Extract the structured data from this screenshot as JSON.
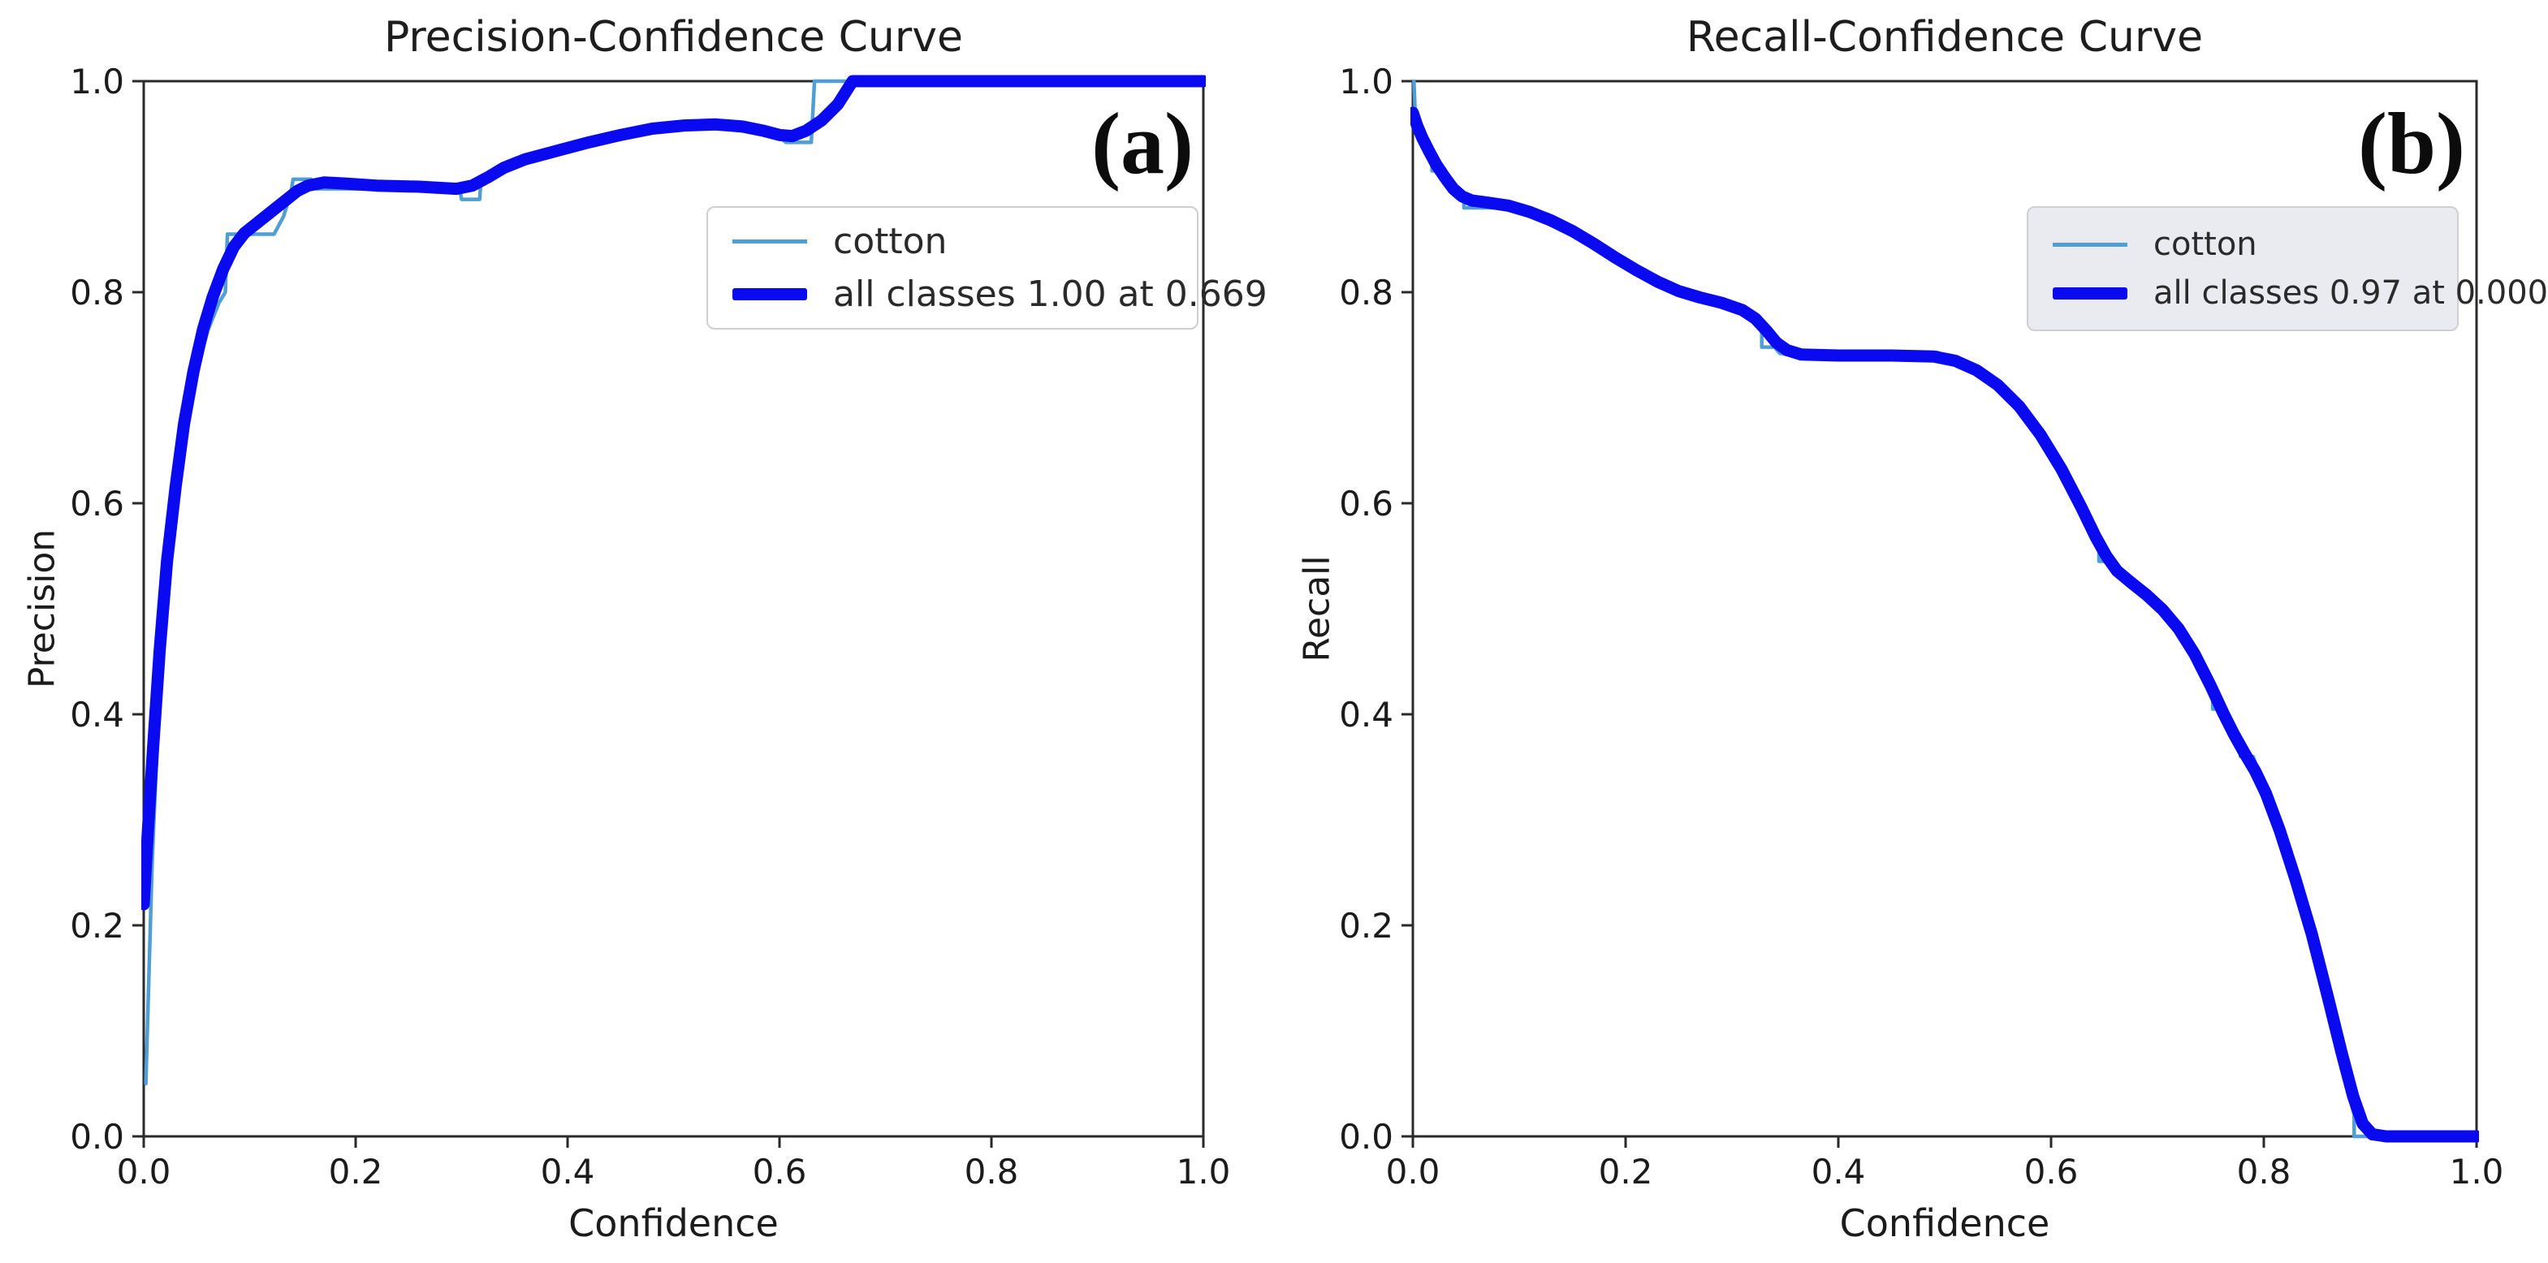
{
  "colors": {
    "class_line": "#4f9fd4",
    "all_classes_line": "#0a0af0",
    "axis": "#2a2a2a",
    "text": "#1b1b1b",
    "legend_border": "#cfcfcf",
    "legend_bg_left": "#ffffff",
    "legend_bg_right": "#ebebf0"
  },
  "chart_data": [
    {
      "type": "line",
      "title": "Precision-Confidence Curve",
      "xlabel": "Confidence",
      "ylabel": "Precision",
      "panel_label": "(a)",
      "xlim": [
        0.0,
        1.0
      ],
      "ylim": [
        0.0,
        1.0
      ],
      "grid": false,
      "legend_position": "upper right",
      "xticks": [
        "0.0",
        "0.2",
        "0.4",
        "0.6",
        "0.8",
        "1.0"
      ],
      "yticks": [
        "0.0",
        "0.2",
        "0.4",
        "0.6",
        "0.8",
        "1.0"
      ],
      "legend": [
        {
          "label": "cotton"
        },
        {
          "label": "all classes 1.00 at 0.669"
        }
      ],
      "series": [
        {
          "name": "cotton",
          "points": [
            [
              0.002,
              0.05
            ],
            [
              0.004,
              0.12
            ],
            [
              0.008,
              0.26
            ],
            [
              0.013,
              0.38
            ],
            [
              0.019,
              0.48
            ],
            [
              0.026,
              0.57
            ],
            [
              0.033,
              0.63
            ],
            [
              0.041,
              0.69
            ],
            [
              0.051,
              0.73
            ],
            [
              0.061,
              0.765
            ],
            [
              0.071,
              0.79
            ],
            [
              0.077,
              0.8
            ],
            [
              0.079,
              0.855
            ],
            [
              0.123,
              0.855
            ],
            [
              0.132,
              0.872
            ],
            [
              0.139,
              0.895
            ],
            [
              0.141,
              0.907
            ],
            [
              0.158,
              0.907
            ],
            [
              0.163,
              0.898
            ],
            [
              0.298,
              0.898
            ],
            [
              0.3,
              0.888
            ],
            [
              0.317,
              0.888
            ],
            [
              0.318,
              0.902
            ],
            [
              0.33,
              0.912
            ],
            [
              0.345,
              0.924
            ],
            [
              0.37,
              0.932
            ],
            [
              0.4,
              0.94
            ],
            [
              0.43,
              0.948
            ],
            [
              0.46,
              0.954
            ],
            [
              0.49,
              0.958
            ],
            [
              0.53,
              0.959
            ],
            [
              0.56,
              0.957
            ],
            [
              0.585,
              0.952
            ],
            [
              0.6,
              0.947
            ],
            [
              0.606,
              0.942
            ],
            [
              0.63,
              0.942
            ],
            [
              0.633,
              1.0
            ],
            [
              1.0,
              1.0
            ]
          ]
        },
        {
          "name": "all classes",
          "points": [
            [
              0.0,
              0.22
            ],
            [
              0.004,
              0.29
            ],
            [
              0.009,
              0.37
            ],
            [
              0.015,
              0.46
            ],
            [
              0.022,
              0.545
            ],
            [
              0.03,
              0.615
            ],
            [
              0.038,
              0.675
            ],
            [
              0.047,
              0.725
            ],
            [
              0.056,
              0.765
            ],
            [
              0.065,
              0.795
            ],
            [
              0.075,
              0.822
            ],
            [
              0.085,
              0.843
            ],
            [
              0.095,
              0.856
            ],
            [
              0.105,
              0.864
            ],
            [
              0.115,
              0.872
            ],
            [
              0.125,
              0.88
            ],
            [
              0.135,
              0.888
            ],
            [
              0.145,
              0.896
            ],
            [
              0.155,
              0.901
            ],
            [
              0.17,
              0.904
            ],
            [
              0.19,
              0.903
            ],
            [
              0.22,
              0.901
            ],
            [
              0.26,
              0.9
            ],
            [
              0.295,
              0.898
            ],
            [
              0.31,
              0.901
            ],
            [
              0.325,
              0.909
            ],
            [
              0.34,
              0.918
            ],
            [
              0.36,
              0.926
            ],
            [
              0.39,
              0.934
            ],
            [
              0.42,
              0.942
            ],
            [
              0.45,
              0.949
            ],
            [
              0.48,
              0.955
            ],
            [
              0.51,
              0.958
            ],
            [
              0.54,
              0.959
            ],
            [
              0.565,
              0.957
            ],
            [
              0.585,
              0.953
            ],
            [
              0.6,
              0.949
            ],
            [
              0.612,
              0.948
            ],
            [
              0.625,
              0.953
            ],
            [
              0.64,
              0.963
            ],
            [
              0.655,
              0.978
            ],
            [
              0.669,
              1.0
            ],
            [
              1.0,
              1.0
            ]
          ]
        }
      ]
    },
    {
      "type": "line",
      "title": "Recall-Confidence Curve",
      "xlabel": "Confidence",
      "ylabel": "Recall",
      "panel_label": "(b)",
      "xlim": [
        0.0,
        1.0
      ],
      "ylim": [
        0.0,
        1.0
      ],
      "grid": false,
      "legend_position": "upper right",
      "xticks": [
        "0.0",
        "0.2",
        "0.4",
        "0.6",
        "0.8",
        "1.0"
      ],
      "yticks": [
        "0.0",
        "0.2",
        "0.4",
        "0.6",
        "0.8",
        "1.0"
      ],
      "legend": [
        {
          "label": "cotton"
        },
        {
          "label": "all classes 0.97 at 0.000"
        }
      ],
      "series": [
        {
          "name": "cotton",
          "points": [
            [
              0.001,
              1.0
            ],
            [
              0.002,
              0.975
            ],
            [
              0.004,
              0.965
            ],
            [
              0.008,
              0.952
            ],
            [
              0.013,
              0.938
            ],
            [
              0.018,
              0.928
            ],
            [
              0.018,
              0.915
            ],
            [
              0.03,
              0.915
            ],
            [
              0.033,
              0.905
            ],
            [
              0.04,
              0.897
            ],
            [
              0.048,
              0.89
            ],
            [
              0.048,
              0.88
            ],
            [
              0.075,
              0.88
            ],
            [
              0.09,
              0.879
            ],
            [
              0.11,
              0.873
            ],
            [
              0.13,
              0.866
            ],
            [
              0.15,
              0.857
            ],
            [
              0.17,
              0.845
            ],
            [
              0.19,
              0.832
            ],
            [
              0.21,
              0.82
            ],
            [
              0.23,
              0.808
            ],
            [
              0.25,
              0.8
            ],
            [
              0.27,
              0.794
            ],
            [
              0.29,
              0.789
            ],
            [
              0.31,
              0.782
            ],
            [
              0.32,
              0.774
            ],
            [
              0.328,
              0.762
            ],
            [
              0.328,
              0.748
            ],
            [
              0.34,
              0.748
            ],
            [
              0.345,
              0.742
            ],
            [
              0.36,
              0.74
            ],
            [
              0.42,
              0.74
            ],
            [
              0.48,
              0.74
            ],
            [
              0.493,
              0.743
            ],
            [
              0.505,
              0.737
            ],
            [
              0.52,
              0.73
            ],
            [
              0.54,
              0.716
            ],
            [
              0.56,
              0.698
            ],
            [
              0.58,
              0.674
            ],
            [
              0.6,
              0.645
            ],
            [
              0.62,
              0.61
            ],
            [
              0.635,
              0.578
            ],
            [
              0.645,
              0.56
            ],
            [
              0.645,
              0.545
            ],
            [
              0.66,
              0.545
            ],
            [
              0.662,
              0.532
            ],
            [
              0.68,
              0.52
            ],
            [
              0.7,
              0.505
            ],
            [
              0.715,
              0.49
            ],
            [
              0.73,
              0.465
            ],
            [
              0.745,
              0.437
            ],
            [
              0.752,
              0.42
            ],
            [
              0.752,
              0.405
            ],
            [
              0.762,
              0.405
            ],
            [
              0.765,
              0.39
            ],
            [
              0.778,
              0.375
            ],
            [
              0.778,
              0.36
            ],
            [
              0.79,
              0.36
            ],
            [
              0.795,
              0.345
            ],
            [
              0.805,
              0.318
            ],
            [
              0.82,
              0.272
            ],
            [
              0.835,
              0.222
            ],
            [
              0.85,
              0.165
            ],
            [
              0.865,
              0.105
            ],
            [
              0.878,
              0.048
            ],
            [
              0.885,
              0.02
            ],
            [
              0.885,
              0.0
            ],
            [
              1.0,
              0.0
            ]
          ]
        },
        {
          "name": "all classes",
          "points": [
            [
              0.0,
              0.97
            ],
            [
              0.004,
              0.958
            ],
            [
              0.009,
              0.946
            ],
            [
              0.015,
              0.934
            ],
            [
              0.022,
              0.921
            ],
            [
              0.03,
              0.909
            ],
            [
              0.038,
              0.898
            ],
            [
              0.046,
              0.891
            ],
            [
              0.055,
              0.887
            ],
            [
              0.07,
              0.885
            ],
            [
              0.09,
              0.882
            ],
            [
              0.11,
              0.876
            ],
            [
              0.13,
              0.868
            ],
            [
              0.15,
              0.858
            ],
            [
              0.17,
              0.846
            ],
            [
              0.19,
              0.833
            ],
            [
              0.21,
              0.821
            ],
            [
              0.23,
              0.81
            ],
            [
              0.25,
              0.801
            ],
            [
              0.27,
              0.795
            ],
            [
              0.29,
              0.79
            ],
            [
              0.31,
              0.783
            ],
            [
              0.322,
              0.775
            ],
            [
              0.333,
              0.763
            ],
            [
              0.342,
              0.752
            ],
            [
              0.352,
              0.745
            ],
            [
              0.365,
              0.741
            ],
            [
              0.4,
              0.74
            ],
            [
              0.45,
              0.74
            ],
            [
              0.49,
              0.739
            ],
            [
              0.51,
              0.735
            ],
            [
              0.53,
              0.726
            ],
            [
              0.55,
              0.712
            ],
            [
              0.57,
              0.692
            ],
            [
              0.59,
              0.665
            ],
            [
              0.61,
              0.632
            ],
            [
              0.628,
              0.597
            ],
            [
              0.642,
              0.568
            ],
            [
              0.652,
              0.55
            ],
            [
              0.662,
              0.536
            ],
            [
              0.675,
              0.525
            ],
            [
              0.69,
              0.513
            ],
            [
              0.705,
              0.499
            ],
            [
              0.72,
              0.481
            ],
            [
              0.735,
              0.457
            ],
            [
              0.75,
              0.427
            ],
            [
              0.762,
              0.401
            ],
            [
              0.772,
              0.381
            ],
            [
              0.782,
              0.363
            ],
            [
              0.792,
              0.346
            ],
            [
              0.802,
              0.325
            ],
            [
              0.815,
              0.29
            ],
            [
              0.83,
              0.243
            ],
            [
              0.845,
              0.192
            ],
            [
              0.86,
              0.133
            ],
            [
              0.873,
              0.08
            ],
            [
              0.884,
              0.038
            ],
            [
              0.893,
              0.012
            ],
            [
              0.902,
              0.002
            ],
            [
              0.915,
              0.0
            ],
            [
              1.0,
              0.0
            ]
          ]
        }
      ]
    }
  ]
}
